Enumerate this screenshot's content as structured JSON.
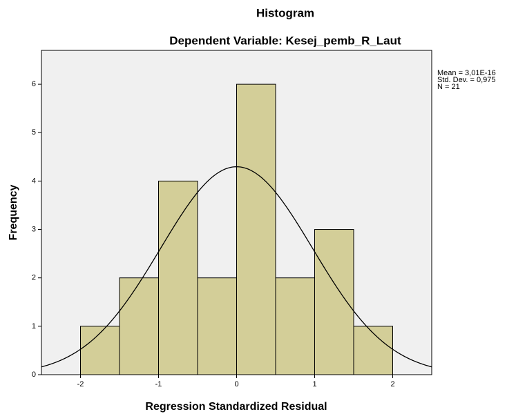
{
  "chart_data": {
    "type": "histogram",
    "title": "Histogram",
    "subtitle": "Dependent Variable: Kesej_pemb_R_Laut",
    "x_label": "Regression Standardized Residual",
    "y_label": "Frequency",
    "bins": [
      -2,
      -1.5,
      -1,
      -0.5,
      0,
      0.5,
      1,
      1.5,
      2
    ],
    "values": [
      1,
      2,
      4,
      2,
      6,
      2,
      3,
      1
    ],
    "color": "#d3ce98",
    "xlim": [
      -2.5,
      2.5
    ],
    "xticks": [
      -2,
      -1,
      0,
      1,
      2
    ],
    "ylim": [
      0,
      6.7
    ],
    "yticks": [
      0,
      1,
      2,
      3,
      4,
      5,
      6
    ],
    "normal_curve": {
      "mean": 3.01e-16,
      "sd": 0.975,
      "n": 21
    },
    "stats_labels": [
      "Mean = 3,01E-16",
      "Std. Dev. = 0,975",
      "N = 21"
    ]
  }
}
